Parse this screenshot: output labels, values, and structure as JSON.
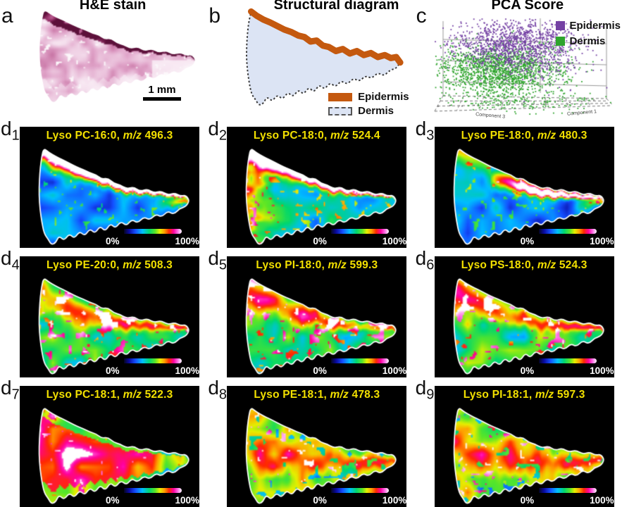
{
  "figure": {
    "top": {
      "a": {
        "label": "a",
        "title": "H&E stain",
        "scale_bar": "1 mm"
      },
      "b": {
        "label": "b",
        "title": "Structural diagram",
        "legend": {
          "epidermis": "Epidermis",
          "dermis": "Dermis"
        },
        "epidermis_color": "#c4590f",
        "dermis_fill": "#dce4f4"
      },
      "c": {
        "label": "c",
        "title": "PCA Score",
        "legend": {
          "epidermis": "Epidermis",
          "dermis": "Dermis"
        },
        "epidermis_color": "#7440a4",
        "dermis_color": "#2ea42c",
        "axis_bottom_left": "Component 3",
        "axis_bottom_right": "Component 1"
      }
    },
    "colorbar": {
      "min": "0%",
      "max": "100%",
      "colors": [
        "#05051e",
        "#0a0aa0",
        "#1450ff",
        "#00beff",
        "#00d76e",
        "#5ae628",
        "#e6f000",
        "#ffa000",
        "#ff2800",
        "#ff00a0",
        "#ff6ee6",
        "#ffffff"
      ]
    },
    "msi_title_color": "#f2e000",
    "msi_panels": [
      {
        "label": "d",
        "sub": "1",
        "lipid": "Lyso PC-16:0,",
        "mz_label": "m/z",
        "mz": "496.3",
        "heat_profile": "epidermal"
      },
      {
        "label": "d",
        "sub": "2",
        "lipid": "Lyso PC-18:0,",
        "mz_label": "m/z",
        "mz": "524.4",
        "heat_profile": "epidermal-left"
      },
      {
        "label": "d",
        "sub": "3",
        "lipid": "Lyso PE-18:0,",
        "mz_label": "m/z",
        "mz": "480.3",
        "heat_profile": "epidermal-band"
      },
      {
        "label": "d",
        "sub": "4",
        "lipid": "Lyso PE-20:0,",
        "mz_label": "m/z",
        "mz": "508.3",
        "heat_profile": "patchy"
      },
      {
        "label": "d",
        "sub": "5",
        "lipid": "Lyso PI-18:0,",
        "mz_label": "m/z",
        "mz": "599.3",
        "heat_profile": "patchy"
      },
      {
        "label": "d",
        "sub": "6",
        "lipid": "Lyso PS-18:0,",
        "mz_label": "m/z",
        "mz": "524.3",
        "heat_profile": "patchy"
      },
      {
        "label": "d",
        "sub": "7",
        "lipid": "Lyso PC-18:1,",
        "mz_label": "m/z",
        "mz": "522.3",
        "heat_profile": "dermal-hot"
      },
      {
        "label": "d",
        "sub": "8",
        "lipid": "Lyso PE-18:1,",
        "mz_label": "m/z",
        "mz": "478.3",
        "heat_profile": "dermal-medium"
      },
      {
        "label": "d",
        "sub": "9",
        "lipid": "Lyso PI-18:1,",
        "mz_label": "m/z",
        "mz": "597.3",
        "heat_profile": "dermal-medium"
      }
    ]
  }
}
